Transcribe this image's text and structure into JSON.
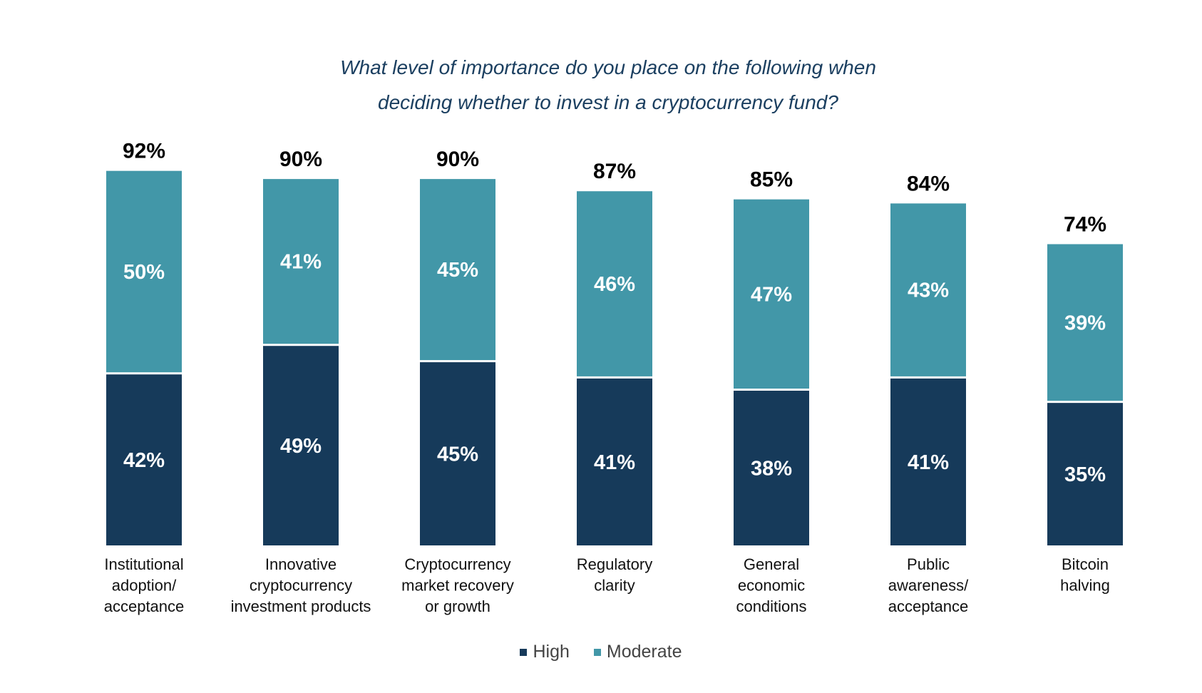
{
  "chart_data": {
    "type": "bar",
    "stacked": true,
    "title_lines": [
      "What level of importance do you place on the following when",
      "deciding whether to invest in a cryptocurrency fund?"
    ],
    "categories": [
      [
        "Institutional",
        "adoption/",
        "acceptance"
      ],
      [
        "Innovative",
        "cryptocurrency",
        "investment products"
      ],
      [
        "Cryptocurrency",
        "market recovery",
        "or growth"
      ],
      [
        "Regulatory",
        "clarity"
      ],
      [
        "General",
        "economic",
        "conditions"
      ],
      [
        "Public",
        "awareness/",
        "acceptance"
      ],
      [
        "Bitcoin",
        "halving"
      ]
    ],
    "series": [
      {
        "name": "High",
        "color": "#163a5a",
        "values": [
          42,
          49,
          45,
          41,
          38,
          41,
          35
        ]
      },
      {
        "name": "Moderate",
        "color": "#4297a8",
        "values": [
          50,
          41,
          45,
          46,
          47,
          43,
          39
        ]
      }
    ],
    "totals": [
      92,
      90,
      90,
      87,
      85,
      84,
      74
    ],
    "value_suffix": "%",
    "ylim": [
      0,
      100
    ],
    "grid": false,
    "legend_position": "bottom"
  }
}
